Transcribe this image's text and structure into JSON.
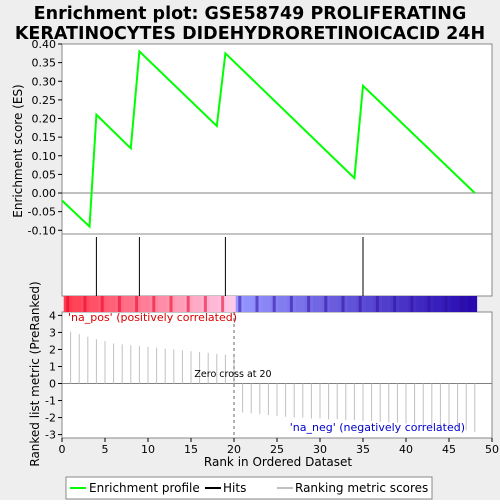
{
  "title_line1": "Enrichment plot: GSE58749 PROLIFERATING",
  "title_line2": "KERATINOCYTES DIDEHYDRORETINOICACID 24H",
  "colors": {
    "enrichment_line": "#00ff00",
    "hits": "#000000",
    "ranked_metric": "#c0c0c0",
    "zero_line": "#808080",
    "pos_label": "#dd0000",
    "neg_label": "#0000cc"
  },
  "chart_data": [
    {
      "type": "line",
      "panel": "enrichment",
      "ylabel": "Enrichment score (ES)",
      "xlim": [
        0,
        50
      ],
      "ylim": [
        -0.11,
        0.4
      ],
      "yticks": [
        "0.40",
        "0.35",
        "0.30",
        "0.25",
        "0.20",
        "0.15",
        "0.10",
        "0.05",
        "0.00",
        "-0.05",
        "-0.10"
      ],
      "ytick_values": [
        0.4,
        0.35,
        0.3,
        0.25,
        0.2,
        0.15,
        0.1,
        0.05,
        0.0,
        -0.05,
        -0.1
      ],
      "series": [
        {
          "x": [
            0,
            3.2,
            4,
            8,
            9,
            18,
            19,
            34,
            35,
            48
          ],
          "y": [
            -0.02,
            -0.09,
            0.21,
            0.12,
            0.38,
            0.18,
            0.375,
            0.04,
            0.288,
            0.0
          ]
        }
      ]
    },
    {
      "type": "bar",
      "panel": "hits",
      "hit_positions": [
        4,
        9,
        19,
        35
      ]
    },
    {
      "type": "bar",
      "panel": "ranked_metric",
      "xlabel": "Rank in Ordered Dataset",
      "ylabel": "Ranked list metric (PreRanked)",
      "xticks": [
        "0",
        "5",
        "10",
        "15",
        "20",
        "25",
        "30",
        "35",
        "40",
        "45",
        "50"
      ],
      "xtick_values": [
        0,
        5,
        10,
        15,
        20,
        25,
        30,
        35,
        40,
        45,
        50
      ],
      "yticks": [
        "4",
        "3",
        "2",
        "1",
        "0",
        "-1",
        "-2",
        "-3"
      ],
      "ytick_values": [
        4,
        3,
        2,
        1,
        0,
        -1,
        -2,
        -3
      ],
      "ylim": [
        -3.2,
        4.2
      ],
      "x": [
        1,
        2,
        3,
        4,
        5,
        6,
        7,
        8,
        9,
        10,
        11,
        12,
        13,
        14,
        15,
        16,
        17,
        18,
        19,
        20,
        21,
        22,
        23,
        24,
        25,
        26,
        27,
        28,
        29,
        30,
        31,
        32,
        33,
        34,
        35,
        36,
        37,
        38,
        39,
        40,
        41,
        42,
        43,
        44,
        45,
        46,
        47,
        48
      ],
      "values": [
        3.05,
        2.9,
        2.75,
        2.6,
        2.5,
        2.35,
        2.3,
        2.25,
        2.2,
        2.15,
        2.1,
        2.05,
        2.0,
        1.95,
        1.9,
        1.85,
        1.8,
        1.75,
        1.7,
        1.6,
        -1.7,
        -1.75,
        -1.8,
        -1.85,
        -1.9,
        -1.95,
        -2.0,
        -2.0,
        -2.05,
        -2.05,
        -2.1,
        -2.1,
        -2.15,
        -2.15,
        -2.2,
        -2.2,
        -2.25,
        -2.3,
        -2.3,
        -2.35,
        -2.4,
        -2.45,
        -2.5,
        -2.55,
        -2.6,
        -2.65,
        -2.75,
        -2.85
      ],
      "zero_cross": 20,
      "zero_cross_label": "Zero cross at 20",
      "pos_label": "'na_pos' (positively correlated)",
      "neg_label": "'na_neg' (negatively correlated)"
    }
  ],
  "legend": {
    "items": [
      {
        "label": "Enrichment profile",
        "color": "#00ff00"
      },
      {
        "label": "Hits",
        "color": "#000000"
      },
      {
        "label": "Ranking metric scores",
        "color": "#c0c0c0"
      }
    ]
  }
}
